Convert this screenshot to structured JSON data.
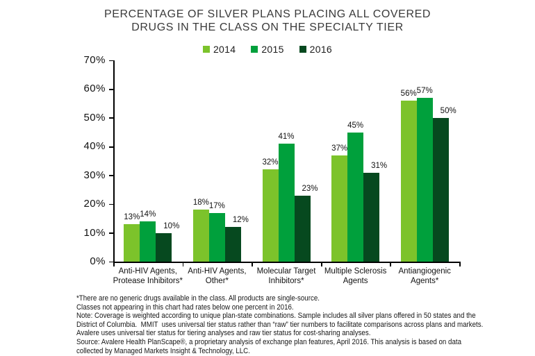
{
  "chart_data": {
    "type": "bar",
    "title": "PERCENTAGE OF SILVER PLANS PLACING ALL COVERED DRUGS IN THE CLASS ON THE SPECIALTY TIER",
    "title_lines": [
      "PERCENTAGE OF SILVER PLANS PLACING ALL COVERED",
      "DRUGS IN THE CLASS ON THE SPECIALTY TIER"
    ],
    "categories": [
      "Anti-HIV Agents,\nProtease Inhibitors*",
      "Anti-HIV Agents,\nOther*",
      "Molecular Target\nInhibitors*",
      "Multiple Sclerosis\nAgents",
      "Antiangiogenic\nAgents*"
    ],
    "series": [
      {
        "name": "2014",
        "color": "#7CC32B",
        "values": [
          13,
          18,
          32,
          37,
          56
        ]
      },
      {
        "name": "2015",
        "color": "#00A03C",
        "values": [
          14,
          17,
          41,
          45,
          57
        ]
      },
      {
        "name": "2016",
        "color": "#06491F",
        "values": [
          10,
          12,
          23,
          31,
          50
        ]
      }
    ],
    "value_suffix": "%",
    "xlabel": "",
    "ylabel": "",
    "ylim": [
      0,
      70
    ],
    "ytick_step": 10,
    "yticks": [
      "0%",
      "10%",
      "20%",
      "30%",
      "40%",
      "50%",
      "60%",
      "70%"
    ],
    "grid": false,
    "legend_position": "top-center"
  },
  "footnotes": {
    "lines": [
      "*There are no generic drugs available in the class. All products are single-source.",
      "Classes not appearing in this chart had rates below one percent in 2016.",
      "Note: Coverage is weighted according to unique plan-state combinations. Sample includes all silver plans offered in 50 states and the",
      "District of Columbia.  MMIT  uses universal tier status rather than “raw” tier numbers to facilitate comparisons across plans and markets.",
      "Avalere uses universal tier status for tiering analyses and raw tier status for cost-sharing analyses.",
      "Source: Avalere Health PlanScape®, a proprietary analysis of exchange plan features, April 2016. This analysis is based on data",
      "collected by Managed Markets Insight & Technology, LLC."
    ]
  }
}
